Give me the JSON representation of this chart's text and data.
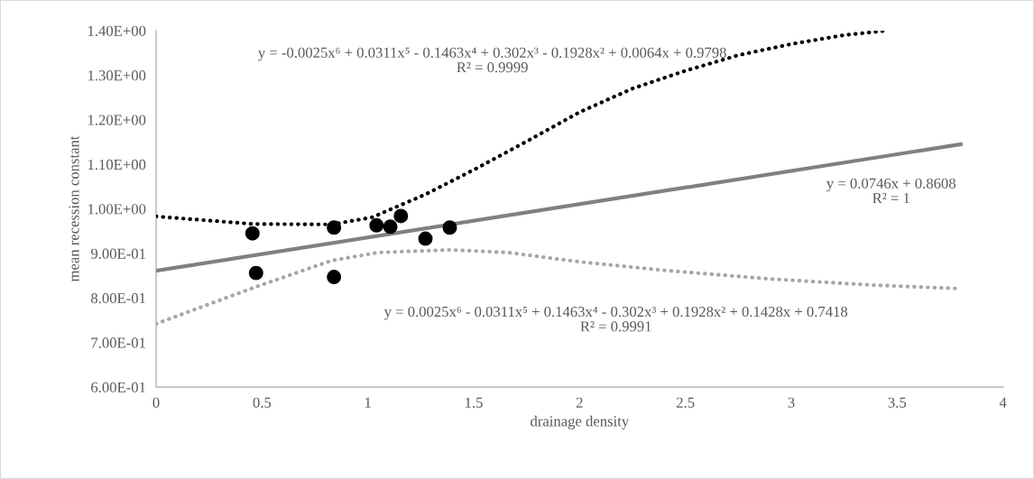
{
  "chart_data": {
    "type": "scatter",
    "xlabel": "drainage density",
    "ylabel": "mean recession constant",
    "xlim": [
      0,
      4
    ],
    "xticks": [
      0,
      0.5,
      1,
      1.5,
      2,
      2.5,
      3,
      3.5,
      4
    ],
    "ylim": [
      0.6,
      1.4
    ],
    "yticks": [
      {
        "value": 0.6,
        "label": "6.00E-01"
      },
      {
        "value": 0.7,
        "label": "7.00E-01"
      },
      {
        "value": 0.8,
        "label": "8.00E-01"
      },
      {
        "value": 0.9,
        "label": "9.00E-01"
      },
      {
        "value": 1.0,
        "label": "1.00E+00"
      },
      {
        "value": 1.1,
        "label": "1.10E+00"
      },
      {
        "value": 1.2,
        "label": "1.20E+00"
      },
      {
        "value": 1.3,
        "label": "1.30E+00"
      },
      {
        "value": 1.4,
        "label": "1.40E+00"
      }
    ],
    "grid": false,
    "legend": false,
    "series": [
      {
        "color": "#000000",
        "marker": "circle",
        "x": [
          0.455,
          0.472,
          0.84,
          0.84,
          1.041,
          1.106,
          1.156,
          1.272,
          1.387
        ],
        "values": [
          0.945,
          0.856,
          0.958,
          0.847,
          0.963,
          0.96,
          0.984,
          0.933,
          0.958
        ]
      },
      {
        "type": "line",
        "color": "#000000",
        "line_style": "dotted",
        "marker": "none",
        "x": [
          0,
          0.46,
          0.83,
          1.02,
          1.27,
          1.51,
          1.76,
          2.0,
          2.25,
          2.5,
          2.75,
          3.0,
          3.25,
          3.45
        ],
        "values": [
          0.983,
          0.966,
          0.965,
          0.981,
          1.032,
          1.09,
          1.154,
          1.217,
          1.27,
          1.31,
          1.345,
          1.37,
          1.39,
          1.4
        ]
      },
      {
        "type": "line",
        "color": "#808080",
        "line_style": "solid",
        "marker": "none",
        "x": [
          0,
          3.8
        ],
        "values": [
          0.861,
          1.145
        ]
      },
      {
        "type": "line",
        "color": "#a6a6a6",
        "line_style": "dotted",
        "marker": "none",
        "x": [
          0,
          0.46,
          0.83,
          1.05,
          1.39,
          1.66,
          2.0,
          2.4,
          2.89,
          3.38,
          3.79
        ],
        "values": [
          0.742,
          0.823,
          0.884,
          0.902,
          0.908,
          0.902,
          0.881,
          0.862,
          0.843,
          0.829,
          0.821
        ]
      }
    ],
    "annotations": [
      "y = -0.0025x⁶ + 0.0311x⁵ - 0.1463x⁴ + 0.302x³ - 0.1928x² + 0.0064x + 0.9798\nR² = 0.9999",
      "y = 0.0746x + 0.8608\nR² = 1",
      "y = 0.0025x⁶ - 0.0311x⁵ + 0.1463x⁴ - 0.302x³ + 0.1928x² + 0.1428x + 0.7418\nR² = 0.9991"
    ]
  }
}
